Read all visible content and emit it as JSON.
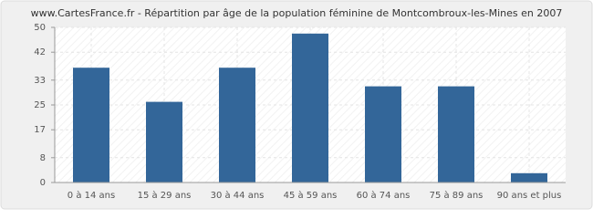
{
  "chart_data": {
    "type": "bar",
    "title": "www.CartesFrance.fr - Répartition par âge de la population féminine de Montcombroux-les-Mines en 2007",
    "categories": [
      "0 à 14 ans",
      "15 à 29 ans",
      "30 à 44 ans",
      "45 à 59 ans",
      "60 à 74 ans",
      "75 à 89 ans",
      "90 ans et plus"
    ],
    "values": [
      37,
      26,
      37,
      48,
      31,
      31,
      3
    ],
    "color": "#336699",
    "ylim": [
      0,
      50
    ],
    "yticks": [
      0,
      8,
      17,
      25,
      33,
      42,
      50
    ],
    "grid": true
  }
}
